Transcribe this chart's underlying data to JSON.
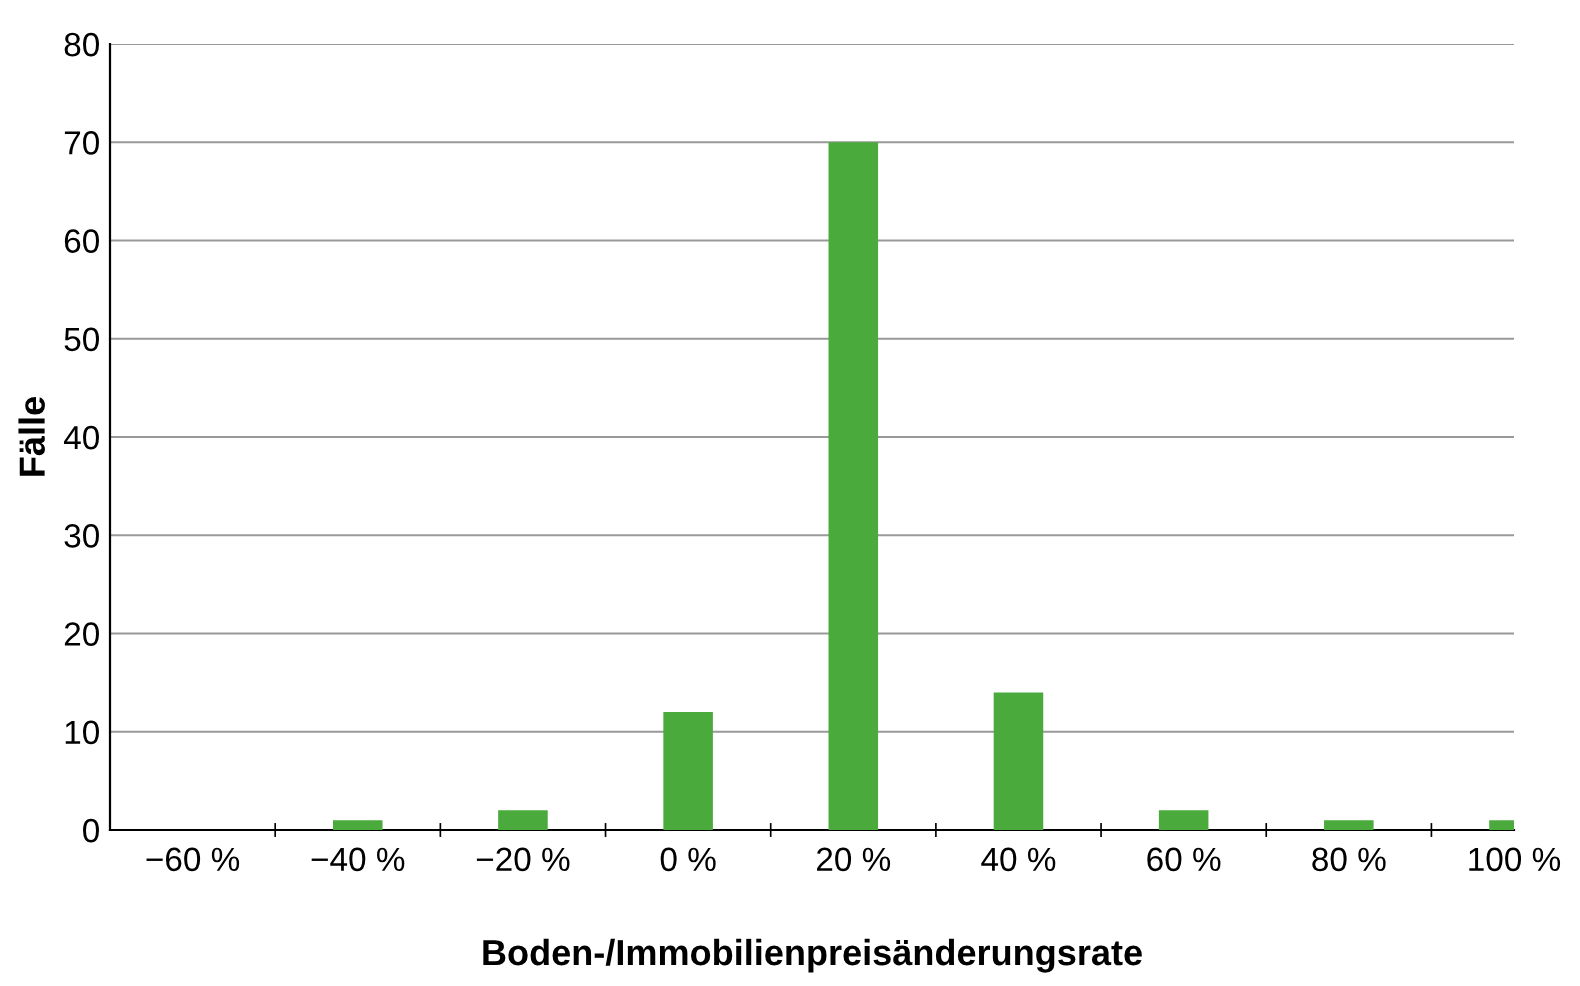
{
  "chart_data": {
    "type": "bar",
    "xlabel": "Boden-/Immobilienpreisänderungsrate",
    "ylabel": "Fälle",
    "categories": [
      "−60 %",
      "−40 %",
      "−20 %",
      "0 %",
      "20 %",
      "40 %",
      "60 %",
      "80 %",
      "100 %"
    ],
    "values": [
      0,
      1,
      2,
      12,
      70,
      14,
      2,
      1,
      1
    ],
    "color": "#4aaa3c",
    "ylim": [
      0,
      80
    ],
    "yticks": [
      0,
      10,
      20,
      30,
      40,
      50,
      60,
      70,
      80
    ],
    "grid": "y",
    "legend": false
  }
}
